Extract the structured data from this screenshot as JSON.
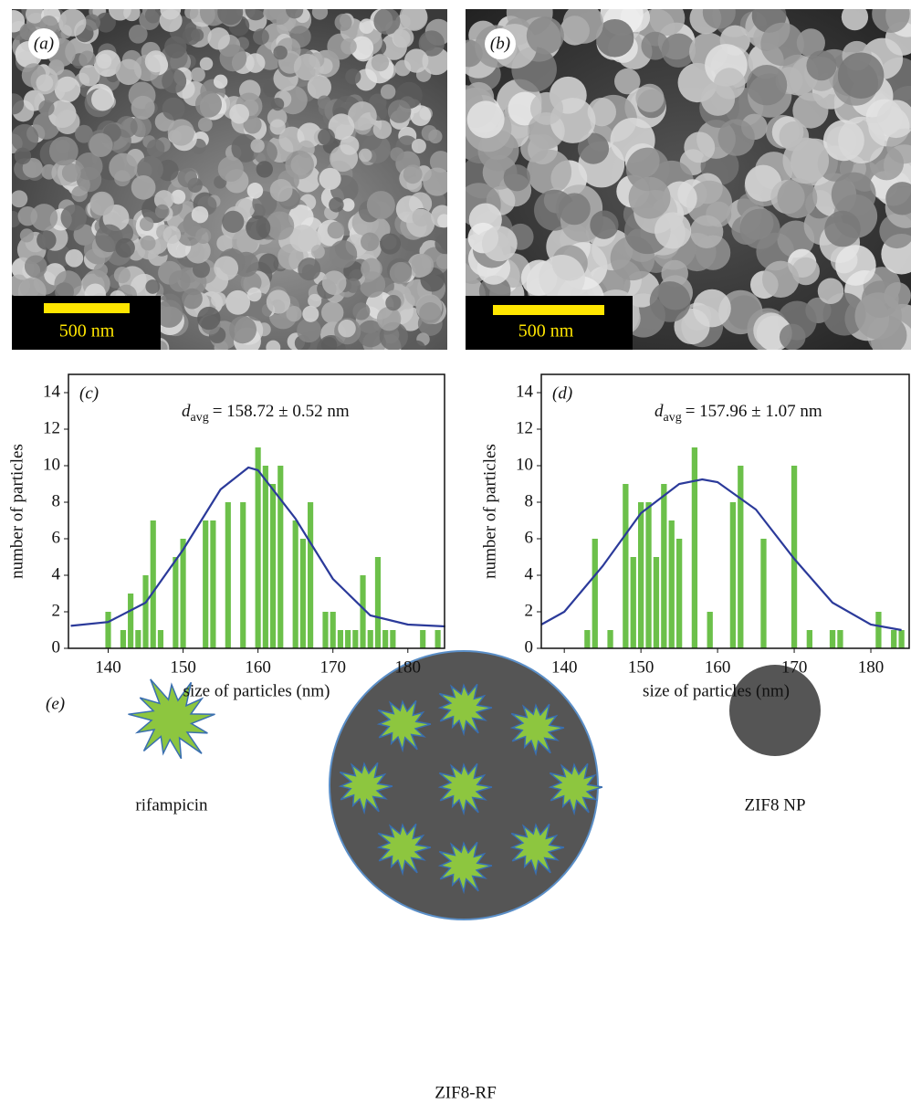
{
  "sem_images": [
    {
      "label": "(a)",
      "scale_bar": "500 nm"
    },
    {
      "label": "(b)",
      "scale_bar": "500 nm"
    }
  ],
  "chart_data": [
    {
      "type": "bar",
      "panel_label": "(c)",
      "annotation": {
        "symbol": "d",
        "subscript": "avg",
        "text": "= 158.72 ± 0.52 nm"
      },
      "x_label": "size of particles (nm)",
      "y_label": "number of particles",
      "x": [
        140,
        142,
        143,
        144,
        145,
        146,
        147,
        149,
        150,
        153,
        154,
        156,
        158,
        160,
        161,
        162,
        163,
        165,
        166,
        167,
        169,
        170,
        171,
        172,
        173,
        174,
        175,
        176,
        177,
        178,
        182,
        184
      ],
      "values": [
        2,
        1,
        3,
        1,
        4,
        7,
        1,
        5,
        6,
        7,
        7,
        8,
        8,
        11,
        10,
        9,
        10,
        7,
        6,
        8,
        2,
        2,
        1,
        1,
        1,
        4,
        1,
        5,
        1,
        1,
        1,
        1
      ],
      "color": "#6cc04a",
      "fit": {
        "x": [
          135,
          140,
          145,
          150,
          155,
          158.72,
          160,
          165,
          170,
          175,
          180,
          185
        ],
        "values": [
          1.23,
          1.44,
          2.5,
          5.4,
          8.7,
          9.9,
          9.75,
          7.1,
          3.8,
          1.8,
          1.3,
          1.2
        ],
        "color": "#2b3a9a"
      },
      "xlim": [
        134.7,
        184.9
      ],
      "ylim": [
        0,
        15
      ],
      "xticks": [
        140,
        150,
        160,
        170,
        180
      ],
      "yticks": [
        0,
        2,
        4,
        6,
        8,
        10,
        12,
        14
      ]
    },
    {
      "type": "bar",
      "panel_label": "(d)",
      "annotation": {
        "symbol": "d",
        "subscript": "avg",
        "text": "= 157.96 ± 1.07 nm"
      },
      "x_label": "size of particles (nm)",
      "y_label": "number of particles",
      "x": [
        143,
        144,
        146,
        148,
        149,
        150,
        151,
        152,
        153,
        154,
        155,
        157,
        159,
        162,
        163,
        166,
        170,
        172,
        175,
        176,
        181,
        183,
        184
      ],
      "values": [
        1,
        6,
        1,
        9,
        5,
        8,
        8,
        5,
        9,
        7,
        6,
        11,
        2,
        8,
        10,
        6,
        10,
        1,
        1,
        1,
        2,
        1,
        1
      ],
      "color": "#6cc04a",
      "fit": {
        "x": [
          137,
          140,
          145,
          150,
          155,
          158,
          160,
          165,
          170,
          175,
          180,
          184
        ],
        "values": [
          1.3,
          2.0,
          4.5,
          7.4,
          9.0,
          9.25,
          9.1,
          7.6,
          4.9,
          2.5,
          1.3,
          1.0
        ],
        "color": "#2b3a9a"
      },
      "xlim": [
        137,
        185
      ],
      "ylim": [
        0,
        15
      ],
      "xticks": [
        140,
        150,
        160,
        170,
        180
      ],
      "yticks": [
        0,
        2,
        4,
        6,
        8,
        10,
        12,
        14
      ]
    }
  ],
  "diagram": {
    "label": "(e)",
    "rifampicin": "rifampicin",
    "nanoparticle": "ZIF8 NP",
    "composite": "ZIF8-RF"
  }
}
